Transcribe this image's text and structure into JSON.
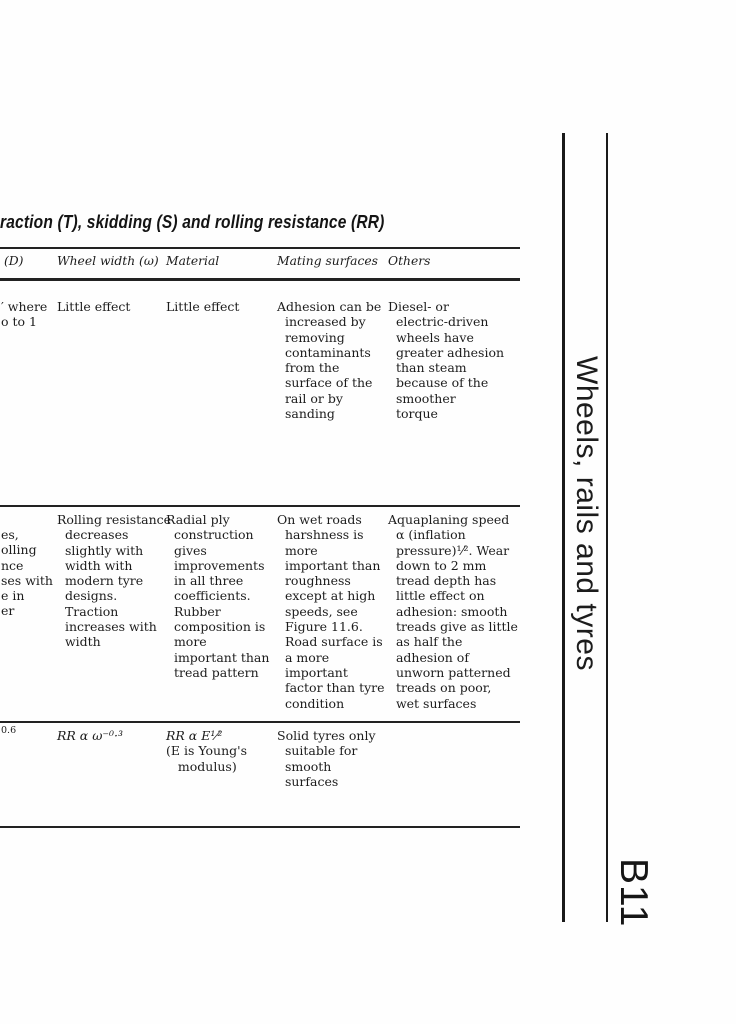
{
  "page": {
    "title": "raction (T), skidding (S) and rolling resistance (RR)"
  },
  "table": {
    "headers": [
      "(D)",
      "Wheel width (ω)",
      "Material",
      "Mating surfaces",
      "Others"
    ],
    "rows": [
      {
        "cut_fragments": [
          "′ where",
          "o to 1"
        ],
        "wheel_width": [
          "Little effect"
        ],
        "material": [
          "Little effect"
        ],
        "mating_surfaces": [
          "Adhesion can be",
          "  increased by",
          "  removing",
          "  contaminants",
          "  from the",
          "  surface of the",
          "  rail or by",
          "  sanding"
        ],
        "others": [
          "Diesel- or",
          "  electric-driven",
          "  wheels have",
          "  greater adhesion",
          "  than steam",
          "  because of the",
          "  smoother",
          "  torque"
        ]
      },
      {
        "cut_fragments": [
          "es,",
          "olling",
          "nce",
          "ses with",
          "e in",
          "er"
        ],
        "wheel_width": [
          "Rolling resistance",
          "  decreases",
          "  slightly with",
          "  width with",
          "  modern tyre",
          "  designs.",
          "  Traction",
          "  increases with",
          "  width"
        ],
        "material": [
          "Radial ply",
          "  construction",
          "  gives",
          "  improvements",
          "  in all three",
          "  coefficients.",
          "  Rubber",
          "  composition is",
          "  more",
          "  important than",
          "  tread pattern"
        ],
        "mating_surfaces": [
          "On wet roads",
          "  harshness is",
          "  more",
          "  important than",
          "  roughness",
          "  except at high",
          "  speeds, see",
          "  Figure 11.6.",
          "  Road surface is",
          "  a more",
          "  important",
          "  factor than tyre",
          "  condition"
        ],
        "others": [
          "Aquaplaning speed",
          "  α (inflation",
          "  pressure)¹⁄². Wear",
          "  down to 2 mm",
          "  tread depth has",
          "  little effect on",
          "  adhesion: smooth",
          "  treads give as little",
          "  as half the",
          "  adhesion of",
          "  unworn patterned",
          "  treads on poor,",
          "  wet surfaces"
        ]
      },
      {
        "cut_fragments": [
          "0.6"
        ],
        "wheel_width": [
          "RR α ω⁻⁰·³"
        ],
        "material": [
          "RR α E¹⁄²",
          "(E is Young's",
          "   modulus)"
        ],
        "mating_surfaces": [
          "Solid tyres only",
          "  suitable for",
          "  smooth",
          "  surfaces"
        ],
        "others": []
      }
    ]
  },
  "sidebar": {
    "title": "Wheels, rails and tyres",
    "page_label": "B11"
  }
}
